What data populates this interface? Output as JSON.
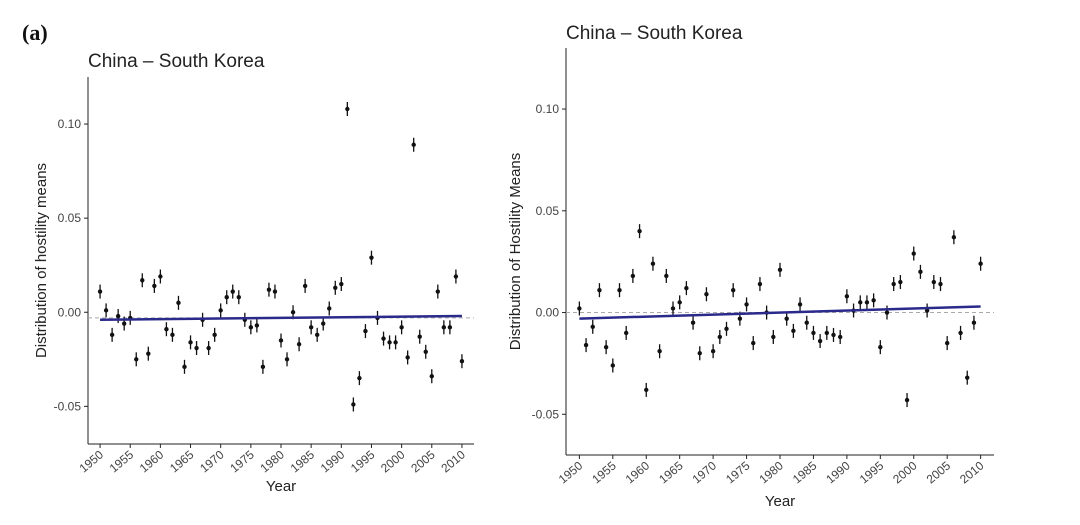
{
  "panel_label": "(a)",
  "chart_data": [
    {
      "type": "scatter",
      "title": "China – South Korea",
      "xlabel": "Year",
      "ylabel": "Distribution of hostility means",
      "xlim": [
        1948,
        2012
      ],
      "ylim": [
        -0.07,
        0.125
      ],
      "xticks": [
        1950,
        1955,
        1960,
        1965,
        1970,
        1975,
        1980,
        1985,
        1990,
        1995,
        2000,
        2005,
        2010
      ],
      "yticks": [
        -0.05,
        0.0,
        0.05,
        0.1
      ],
      "ytick_labels": [
        "-0.05",
        "0.00",
        "0.05",
        "0.10"
      ],
      "trend": {
        "x": [
          1950,
          2010
        ],
        "y": [
          -0.004,
          -0.002
        ],
        "color": "#2a2a8a"
      },
      "reference_line": {
        "y": -0.003,
        "style": "dashed"
      },
      "series": [
        {
          "x": [
            1950,
            1951,
            1952,
            1953,
            1954,
            1955,
            1956,
            1957,
            1958,
            1959,
            1960,
            1961,
            1962,
            1963,
            1964,
            1965,
            1966,
            1967,
            1968,
            1969,
            1970,
            1971,
            1972,
            1973,
            1974,
            1975,
            1976,
            1977,
            1978,
            1979,
            1980,
            1981,
            1982,
            1983,
            1984,
            1985,
            1986,
            1987,
            1988,
            1989,
            1990,
            1991,
            1992,
            1993,
            1994,
            1995,
            1996,
            1997,
            1998,
            1999,
            2000,
            2001,
            2002,
            2003,
            2004,
            2005,
            2006,
            2007,
            2008,
            2009,
            2010
          ],
          "y": [
            0.011,
            0.001,
            -0.012,
            -0.002,
            -0.006,
            -0.003,
            -0.025,
            0.017,
            -0.022,
            0.014,
            0.019,
            -0.009,
            -0.012,
            0.005,
            -0.029,
            -0.016,
            -0.019,
            -0.004,
            -0.019,
            -0.012,
            0.001,
            0.008,
            0.011,
            0.008,
            -0.004,
            -0.008,
            -0.007,
            -0.029,
            0.012,
            0.011,
            -0.015,
            -0.025,
            0.0,
            -0.017,
            0.014,
            -0.008,
            -0.012,
            -0.006,
            0.002,
            0.013,
            0.015,
            0.108,
            -0.049,
            -0.035,
            -0.01,
            0.029,
            -0.003,
            -0.014,
            -0.016,
            -0.016,
            -0.008,
            -0.024,
            0.089,
            -0.013,
            -0.021,
            -0.034,
            0.011,
            -0.008,
            -0.008,
            0.019,
            -0.026
          ]
        }
      ]
    },
    {
      "type": "scatter",
      "title": "China – South Korea",
      "xlabel": "Year",
      "ylabel": "Distribution of Hostility Means",
      "xlim": [
        1948,
        2012
      ],
      "ylim": [
        -0.07,
        0.13
      ],
      "xticks": [
        1950,
        1955,
        1960,
        1965,
        1970,
        1975,
        1980,
        1985,
        1990,
        1995,
        2000,
        2005,
        2010
      ],
      "yticks": [
        -0.05,
        0.0,
        0.05,
        0.1
      ],
      "ytick_labels": [
        "-0.05",
        "0.00",
        "0.05",
        "0.10"
      ],
      "trend": {
        "x": [
          1950,
          2010
        ],
        "y": [
          -0.003,
          0.003
        ],
        "color": "#2a2a8a"
      },
      "reference_line": {
        "y": 0.0,
        "style": "dashed"
      },
      "series": [
        {
          "x": [
            1950,
            1951,
            1952,
            1953,
            1954,
            1955,
            1956,
            1957,
            1958,
            1959,
            1960,
            1961,
            1962,
            1963,
            1964,
            1965,
            1966,
            1967,
            1968,
            1969,
            1970,
            1971,
            1972,
            1973,
            1974,
            1975,
            1976,
            1977,
            1978,
            1979,
            1980,
            1981,
            1982,
            1983,
            1984,
            1985,
            1986,
            1987,
            1988,
            1989,
            1990,
            1991,
            1992,
            1993,
            1994,
            1995,
            1996,
            1997,
            1998,
            1999,
            2000,
            2001,
            2002,
            2003,
            2004,
            2005,
            2006,
            2007,
            2008,
            2009,
            2010
          ],
          "y": [
            0.002,
            -0.016,
            -0.007,
            0.011,
            -0.017,
            -0.026,
            0.011,
            -0.01,
            0.018,
            0.04,
            -0.038,
            0.024,
            -0.019,
            0.018,
            0.002,
            0.005,
            0.012,
            -0.005,
            -0.02,
            0.009,
            -0.019,
            -0.012,
            -0.008,
            0.011,
            -0.003,
            0.004,
            -0.015,
            0.014,
            0.0,
            -0.012,
            0.021,
            -0.003,
            -0.009,
            0.004,
            -0.005,
            -0.01,
            -0.014,
            -0.01,
            -0.011,
            -0.012,
            0.008,
            0.001,
            0.005,
            0.005,
            0.006,
            -0.017,
            0.0,
            0.014,
            0.015,
            -0.043,
            0.029,
            0.02,
            0.001,
            0.015,
            0.014,
            -0.015,
            0.037,
            -0.01,
            -0.032,
            -0.005,
            0.024
          ]
        }
      ]
    }
  ]
}
